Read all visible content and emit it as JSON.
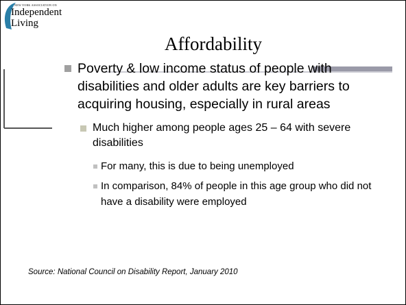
{
  "logo": {
    "top_line": "NEW YORK ASSOCIATION ON",
    "line1": "Independent",
    "line2": "Living"
  },
  "title": "Affordability",
  "bullets": [
    {
      "level": 1,
      "text": "Poverty & low income status of people with disabilities and older adults are key barriers to acquiring housing, especially in rural areas"
    },
    {
      "level": 2,
      "text": "Much higher among people ages 25 – 64 with severe disabilities"
    },
    {
      "level": 3,
      "text": "For many, this is due to being unemployed"
    },
    {
      "level": 3,
      "text": "In comparison, 84% of people in this age group who did not have a disability were employed"
    }
  ],
  "source": "Source:  National Council on Disability Report, January 2010"
}
